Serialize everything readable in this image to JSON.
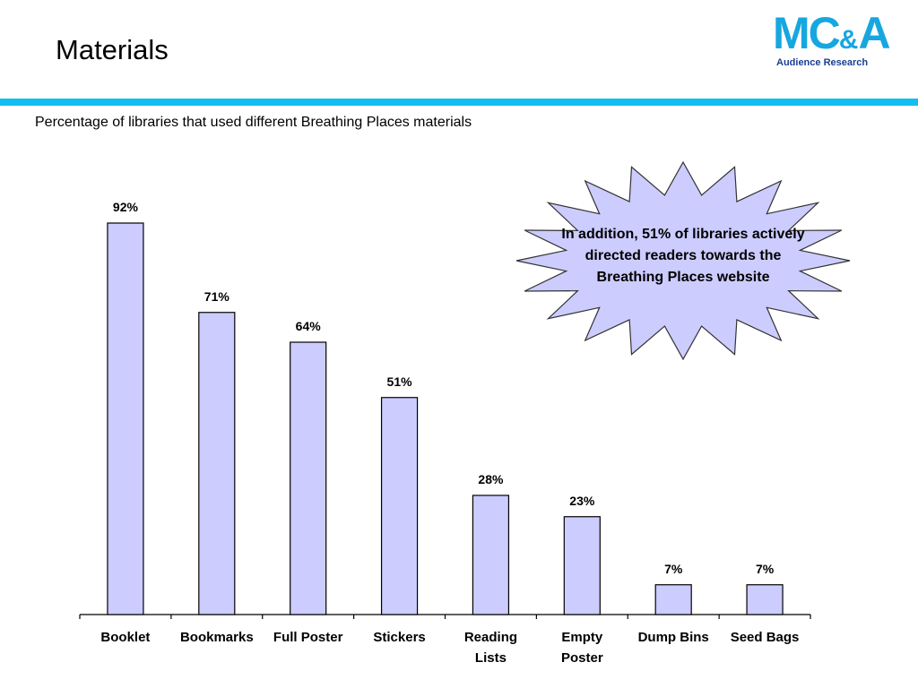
{
  "slide": {
    "title": "Materials",
    "logo_main": "MC",
    "logo_amp": "&",
    "logo_tail": "A",
    "logo_sub": "Audience Research",
    "accent_color": "#12bdf0",
    "logo_color": "#17a7e0",
    "logo_sub_color": "#1c3f94"
  },
  "callout": {
    "text": "In addition, 51% of libraries actively directed readers towards the Breathing Places website",
    "fill": "#ccccff"
  },
  "chart_data": {
    "type": "bar",
    "title": "Percentage of libraries that used different Breathing Places materials",
    "categories": [
      [
        "Booklet"
      ],
      [
        "Bookmarks"
      ],
      [
        "Full Poster"
      ],
      [
        "Stickers"
      ],
      [
        "Reading",
        "Lists"
      ],
      [
        "Empty",
        "Poster"
      ],
      [
        "Dump Bins"
      ],
      [
        "Seed Bags"
      ]
    ],
    "values": [
      92,
      71,
      64,
      51,
      28,
      23,
      7,
      7
    ],
    "value_labels": [
      "92%",
      "71%",
      "64%",
      "51%",
      "28%",
      "23%",
      "7%",
      "7%"
    ],
    "bar_color": "#ccccff",
    "ylim": [
      0,
      100
    ],
    "xlabel": "",
    "ylabel": "",
    "grid": false
  }
}
